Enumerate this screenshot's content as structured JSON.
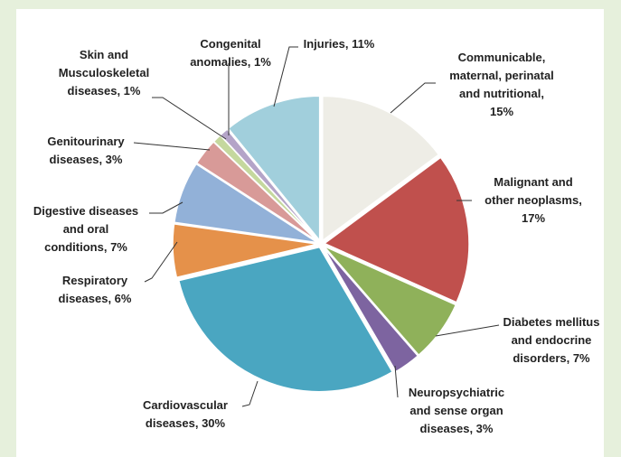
{
  "chart_data": {
    "type": "pie",
    "categories": [
      "Communicable, maternal, perinatal and nutritional, 15%",
      "Malignant and other neoplasms, 17%",
      "Diabetes mellitus and endocrine disorders, 7%",
      "Neuropsychiatric and sense organ diseases, 3%",
      "Cardiovascular diseases, 30%",
      "Respiratory diseases, 6%",
      "Digestive diseases and oral conditions, 7%",
      "Genitourinary diseases, 3%",
      "Skin and Musculoskeletal diseases, 1%",
      "Congenital anomalies, 1%",
      "Injuries, 11%"
    ],
    "values": [
      15,
      17,
      7,
      3,
      30,
      6,
      7,
      3,
      1,
      1,
      11
    ],
    "colors": [
      "#eeede6",
      "#c0504d",
      "#8fb15a",
      "#7d64a0",
      "#4aa6c1",
      "#e5914a",
      "#92b1d8",
      "#d89a98",
      "#c5d89e",
      "#b4a4c8",
      "#a1cfdc"
    ]
  }
}
